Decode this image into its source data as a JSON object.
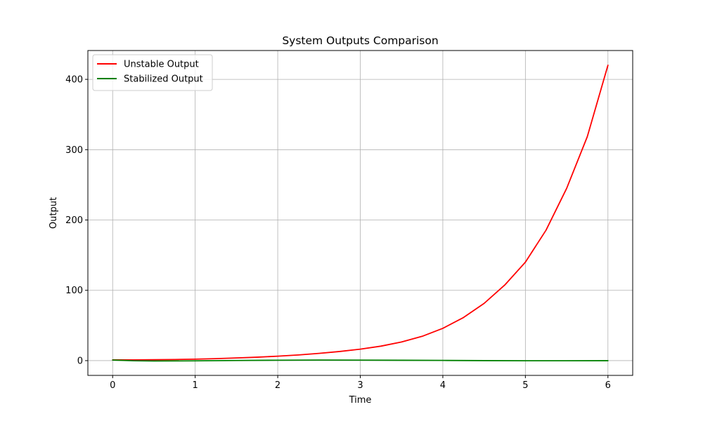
{
  "chart_data": {
    "type": "line",
    "title": "System Outputs Comparison",
    "xlabel": "Time",
    "ylabel": "Output",
    "xlim": [
      -0.3,
      6.3
    ],
    "ylim": [
      -21,
      441
    ],
    "xticks": [
      0,
      1,
      2,
      3,
      4,
      5,
      6
    ],
    "yticks": [
      0,
      100,
      200,
      300,
      400
    ],
    "grid": true,
    "legend_position": "top-left",
    "series": [
      {
        "name": "Unstable Output",
        "color": "#ff0000",
        "x": [
          0,
          0.25,
          0.5,
          0.75,
          1.0,
          1.25,
          1.5,
          1.75,
          2.0,
          2.25,
          2.5,
          2.75,
          3.0,
          3.25,
          3.5,
          3.75,
          4.0,
          4.25,
          4.5,
          4.75,
          5.0,
          5.25,
          5.5,
          5.75,
          6.0
        ],
        "y": [
          1,
          1.1,
          1.3,
          1.6,
          2.1,
          2.8,
          3.8,
          4.9,
          6.3,
          8.1,
          10.3,
          13.0,
          16.3,
          20.6,
          26.5,
          34.6,
          45.9,
          61.3,
          81.4,
          107.5,
          140.0,
          185.5,
          245.0,
          318.5,
          420.0
        ]
      },
      {
        "name": "Stabilized Output",
        "color": "#008000",
        "x": [
          0,
          0.25,
          0.5,
          1.0,
          1.5,
          2.0,
          2.5,
          3.0,
          3.5,
          4.0,
          4.5,
          5.0,
          5.5,
          6.0
        ],
        "y": [
          0.8,
          -0.2,
          -0.5,
          -0.3,
          0.2,
          0.6,
          0.8,
          0.7,
          0.5,
          0.3,
          0.0,
          -0.2,
          -0.2,
          -0.1
        ]
      }
    ]
  }
}
